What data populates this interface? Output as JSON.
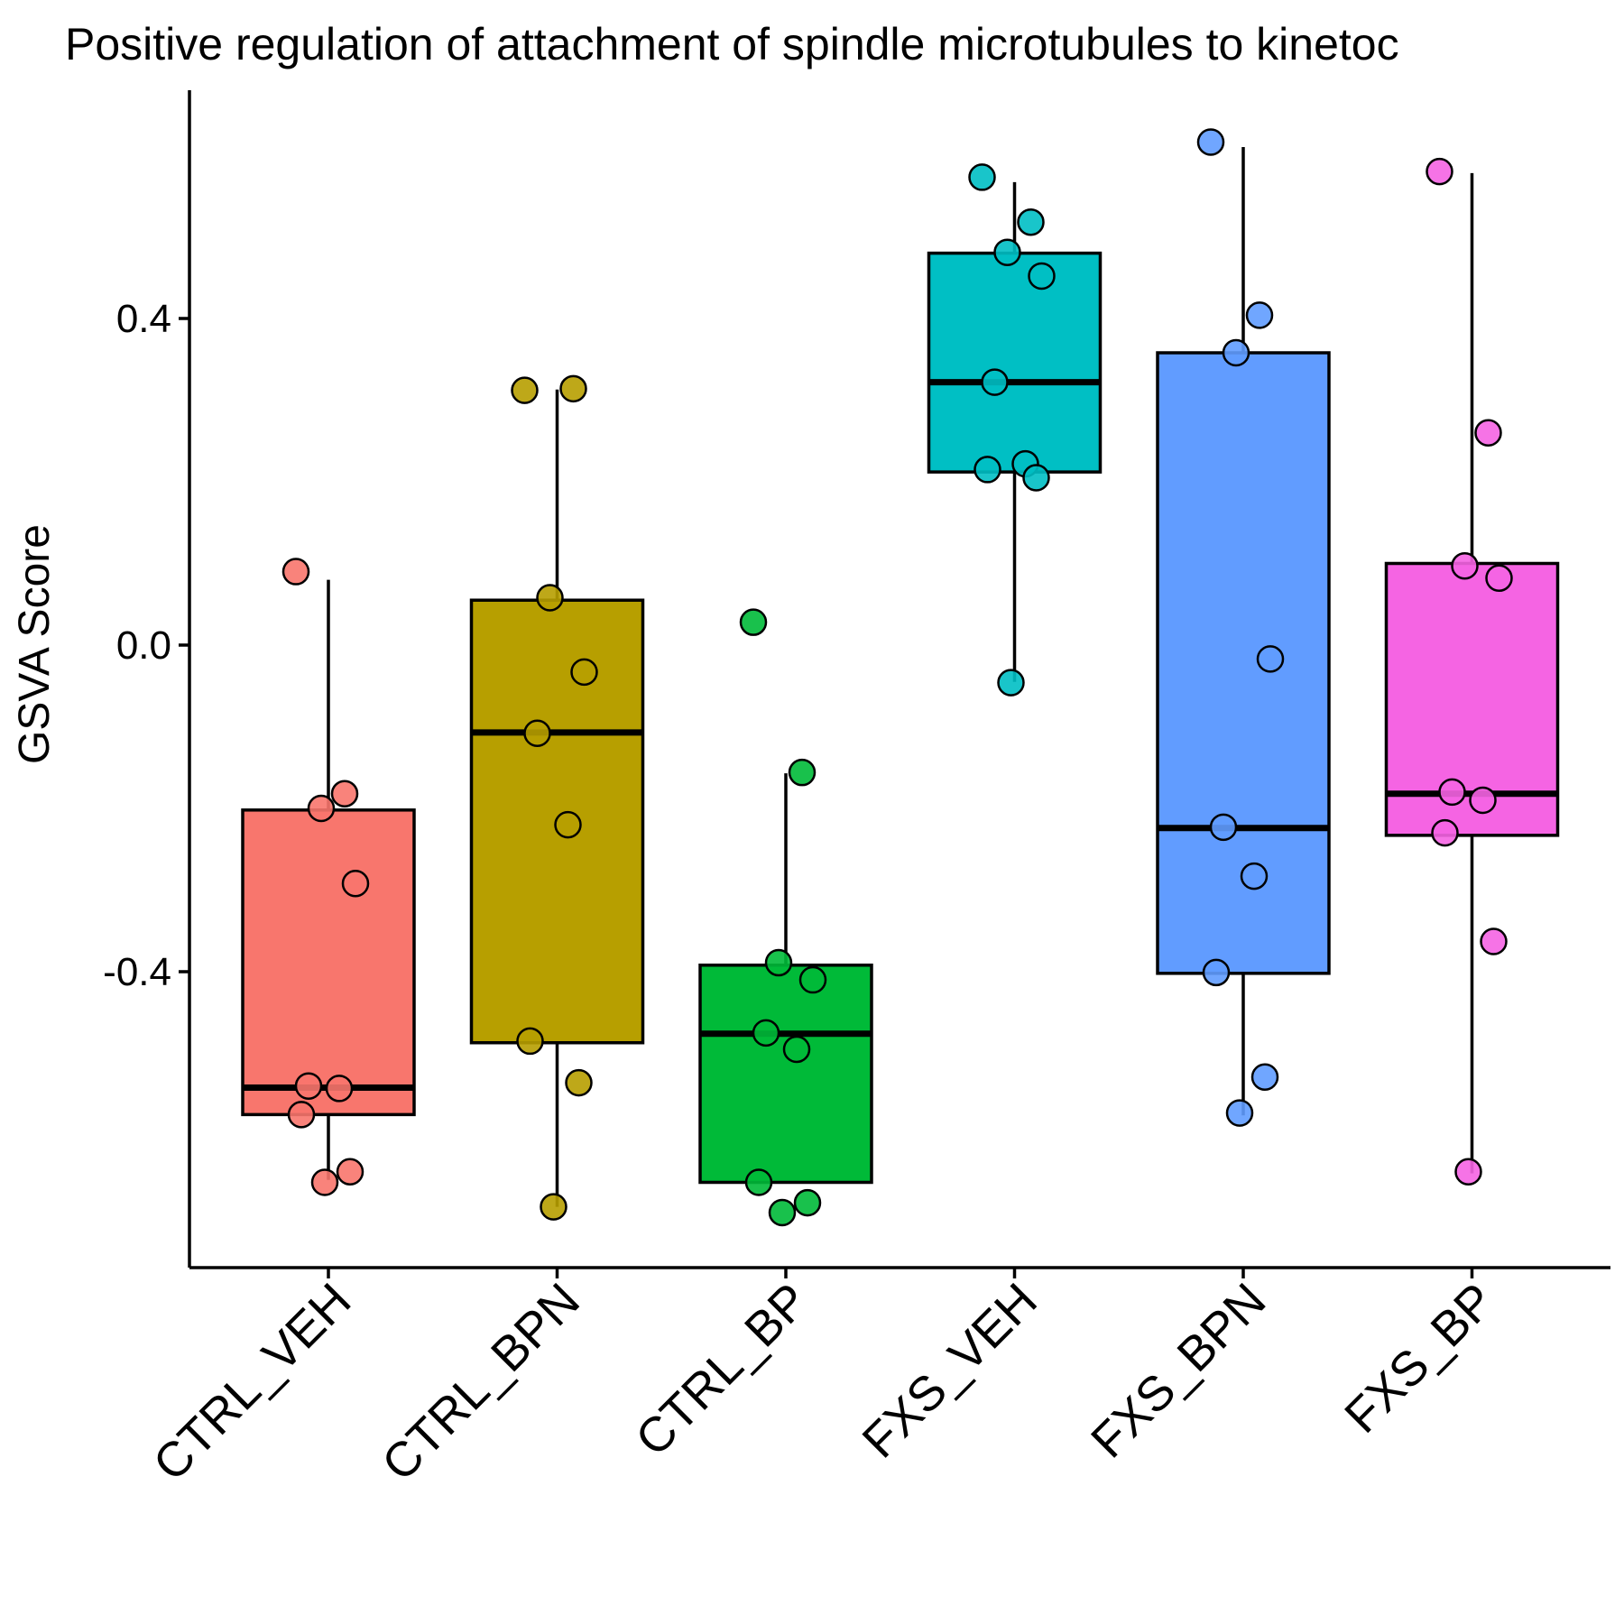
{
  "chart_data": {
    "type": "box",
    "title": "Positive regulation of attachment of spindle microtubules to kinetoc",
    "xlabel": "",
    "ylabel": "GSVA Score",
    "ylim": [
      -0.76,
      0.68
    ],
    "yticks": [
      0.4,
      0.0,
      -0.4
    ],
    "ytick_labels": [
      "0.4",
      "0.0",
      "-0.4"
    ],
    "grid": false,
    "legend": "none",
    "categories": [
      "CTRL_VEH",
      "CTRL_BPN",
      "CTRL_BP",
      "FXS_VEH",
      "FXS_BPN",
      "FXS_BP"
    ],
    "colors": [
      "#F8766D",
      "#B79F00",
      "#00BA38",
      "#00BFC4",
      "#619CFF",
      "#F564E3"
    ],
    "boxes": [
      {
        "category": "CTRL_VEH",
        "q1": -0.575,
        "median": -0.542,
        "q3": -0.202,
        "whisker_low": -0.655,
        "whisker_high": 0.08
      },
      {
        "category": "CTRL_BPN",
        "q1": -0.487,
        "median": -0.107,
        "q3": 0.055,
        "whisker_low": -0.688,
        "whisker_high": 0.313
      },
      {
        "category": "CTRL_BP",
        "q1": -0.658,
        "median": -0.476,
        "q3": -0.392,
        "whisker_low": -0.658,
        "whisker_high": -0.157
      },
      {
        "category": "FXS_VEH",
        "q1": 0.212,
        "median": 0.322,
        "q3": 0.48,
        "whisker_low": -0.045,
        "whisker_high": 0.567
      },
      {
        "category": "FXS_BPN",
        "q1": -0.402,
        "median": -0.224,
        "q3": 0.358,
        "whisker_low": -0.576,
        "whisker_high": 0.61
      },
      {
        "category": "FXS_BP",
        "q1": -0.233,
        "median": -0.182,
        "q3": 0.1,
        "whisker_low": -0.647,
        "whisker_high": 0.578
      }
    ],
    "points": [
      {
        "category": "CTRL_VEH",
        "values": [
          0.09,
          -0.182,
          -0.2,
          -0.292,
          -0.54,
          -0.543,
          -0.575,
          -0.645,
          -0.658
        ]
      },
      {
        "category": "CTRL_BPN",
        "values": [
          0.312,
          0.314,
          0.058,
          -0.033,
          -0.108,
          -0.22,
          -0.485,
          -0.536,
          -0.688
        ]
      },
      {
        "category": "CTRL_BP",
        "values": [
          0.028,
          -0.156,
          -0.389,
          -0.41,
          -0.475,
          -0.495,
          -0.658,
          -0.683,
          -0.695
        ]
      },
      {
        "category": "FXS_VEH",
        "values": [
          0.573,
          0.518,
          0.481,
          0.452,
          0.322,
          0.222,
          0.215,
          0.205,
          -0.046
        ]
      },
      {
        "category": "FXS_BPN",
        "values": [
          0.616,
          0.404,
          0.358,
          -0.017,
          -0.223,
          -0.283,
          -0.401,
          -0.529,
          -0.573
        ]
      },
      {
        "category": "FXS_BP",
        "values": [
          0.58,
          0.26,
          0.097,
          0.082,
          -0.18,
          -0.19,
          -0.23,
          -0.363,
          -0.645
        ]
      }
    ]
  }
}
